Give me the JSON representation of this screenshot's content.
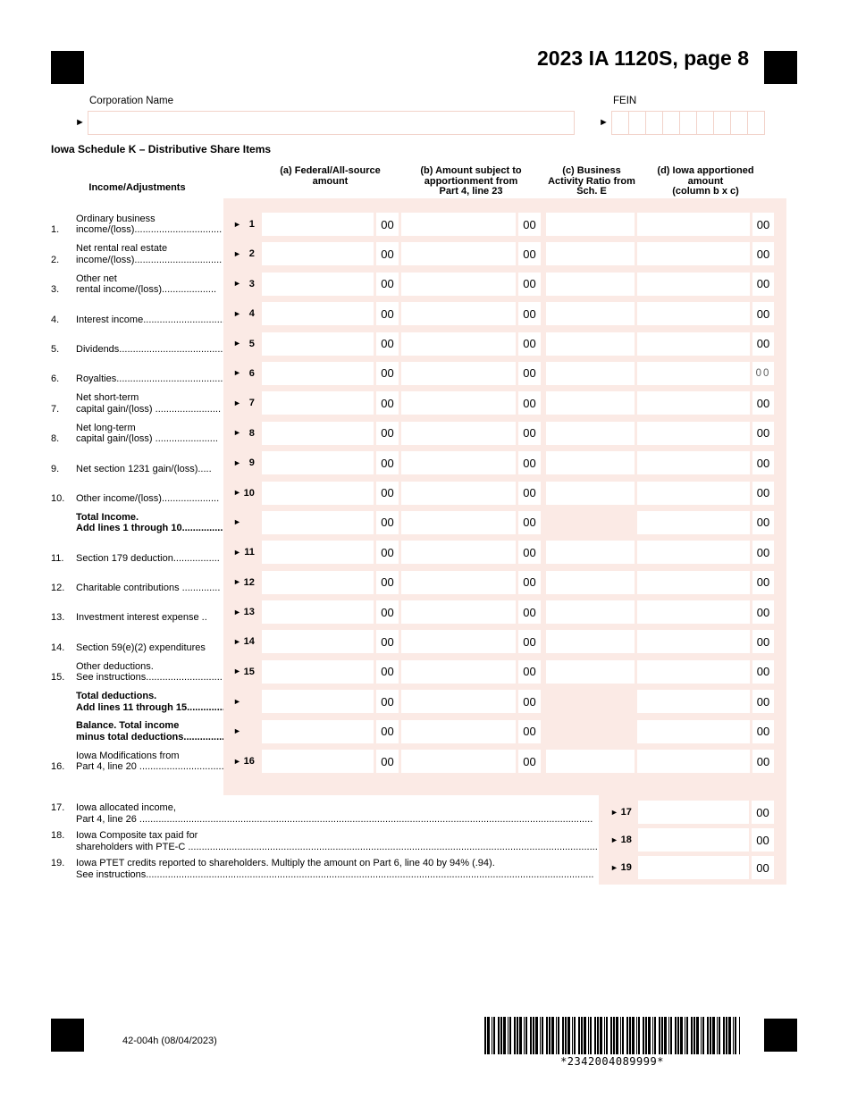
{
  "page": {
    "title": "2023 IA 1120S, page 8",
    "schedule_heading": "Iowa Schedule K – Distributive Share Items",
    "corporation_name_label": "Corporation Name",
    "corporation_name_value": "",
    "fein_label": "FEIN",
    "fein_cells": 9,
    "fein_value": ""
  },
  "icons": {
    "arrow": "►"
  },
  "table": {
    "income_adjustments_header": "Income/Adjustments",
    "headers": {
      "a": [
        "(a) Federal/All-source",
        "amount"
      ],
      "b": [
        "(b) Amount subject to",
        "apportionment from",
        "Part 4, line 23"
      ],
      "c": [
        "(c) Business",
        "Activity Ratio from",
        "Sch. E"
      ],
      "d": [
        "(d) Iowa apportioned",
        "amount",
        "(column b x c)"
      ]
    },
    "cents": "00",
    "field_value": "",
    "rows": [
      {
        "num": "1.",
        "lines": [
          "Ordinary business",
          "income/(loss)................................"
        ],
        "marker": "1",
        "bold": false,
        "c_box": true,
        "d_light": false
      },
      {
        "num": "2.",
        "lines": [
          "Net rental real estate",
          "income/(loss)................................"
        ],
        "marker": "2",
        "bold": false,
        "c_box": true,
        "d_light": false
      },
      {
        "num": "3.",
        "lines": [
          "Other net",
          "rental income/(loss)...................."
        ],
        "marker": "3",
        "bold": false,
        "c_box": true,
        "d_light": false
      },
      {
        "num": "4.",
        "lines": [
          "Interest income..............................."
        ],
        "marker": "4",
        "bold": false,
        "c_box": true,
        "d_light": false
      },
      {
        "num": "5.",
        "lines": [
          "Dividends........................................"
        ],
        "marker": "5",
        "bold": false,
        "c_box": true,
        "d_light": false
      },
      {
        "num": "6.",
        "lines": [
          "Royalties........................................."
        ],
        "marker": "6",
        "bold": false,
        "c_box": true,
        "d_light": true
      },
      {
        "num": "7.",
        "lines": [
          "Net short-term",
          "capital gain/(loss) ........................"
        ],
        "marker": "7",
        "bold": false,
        "c_box": true,
        "d_light": false
      },
      {
        "num": "8.",
        "lines": [
          "Net long-term",
          "capital gain/(loss)  ......................."
        ],
        "marker": "8",
        "bold": false,
        "c_box": true,
        "d_light": false
      },
      {
        "num": "9.",
        "lines": [
          "Net section 1231 gain/(loss)....."
        ],
        "marker": "9",
        "bold": false,
        "c_box": true,
        "d_light": false
      },
      {
        "num": "10.",
        "lines": [
          "Other income/(loss)....................."
        ],
        "marker": "10",
        "bold": false,
        "c_box": true,
        "d_light": false
      },
      {
        "num": "",
        "lines": [
          "Total Income.",
          "Add lines 1 through 10...................."
        ],
        "marker": "",
        "bold": true,
        "c_box": false,
        "d_light": false
      },
      {
        "num": "11.",
        "lines": [
          "Section 179 deduction................."
        ],
        "marker": "11",
        "bold": false,
        "c_box": true,
        "d_light": false
      },
      {
        "num": "12.",
        "lines": [
          "Charitable contributions .............."
        ],
        "marker": "12",
        "bold": false,
        "c_box": true,
        "d_light": false
      },
      {
        "num": "13.",
        "lines": [
          "Investment interest expense .."
        ],
        "marker": "13",
        "bold": false,
        "c_box": true,
        "d_light": false
      },
      {
        "num": "14.",
        "lines": [
          "Section 59(e)(2) expenditures"
        ],
        "marker": "14",
        "bold": false,
        "c_box": true,
        "d_light": false
      },
      {
        "num": "15.",
        "lines": [
          "Other deductions.",
          "See instructions............................"
        ],
        "marker": "15",
        "bold": false,
        "c_box": true,
        "d_light": false
      },
      {
        "num": "",
        "lines": [
          "Total deductions.",
          "Add lines 11 through 15.................."
        ],
        "marker": "",
        "bold": true,
        "c_box": false,
        "d_light": false
      },
      {
        "num": "",
        "lines": [
          "Balance. Total income",
          "minus total deductions...................."
        ],
        "marker": "",
        "bold": true,
        "c_box": false,
        "d_light": false
      },
      {
        "num": "16.",
        "lines": [
          "Iowa Modifications from",
          "Part 4, line 20 ..............................."
        ],
        "marker": "16",
        "bold": false,
        "c_box": true,
        "d_light": false
      }
    ],
    "bottom_rows": [
      {
        "num": "17.",
        "lines": [
          "Iowa allocated income,",
          "Part 4, line 26 ......................................................................................................................................................................"
        ],
        "marker": "17"
      },
      {
        "num": "18.",
        "lines": [
          "Iowa Composite tax paid for",
          "shareholders with PTE-C ......................................................................................................................................................"
        ],
        "marker": "18"
      },
      {
        "num": "19.",
        "lines": [
          "Iowa PTET credits reported to shareholders. Multiply the amount on Part 6, line 40 by 94% (.94).",
          "See instructions...................................................................................................................................................................."
        ],
        "marker": "19"
      }
    ]
  },
  "footer": {
    "form_code": "42-004h (08/04/2023)",
    "barcode_text": "*2342004089999*"
  },
  "colors": {
    "form_pink_background": "#fbeae5",
    "field_border_pink": "#f2d3ca",
    "text": "#000000",
    "light_cents_gray": "#5f5f5f"
  }
}
